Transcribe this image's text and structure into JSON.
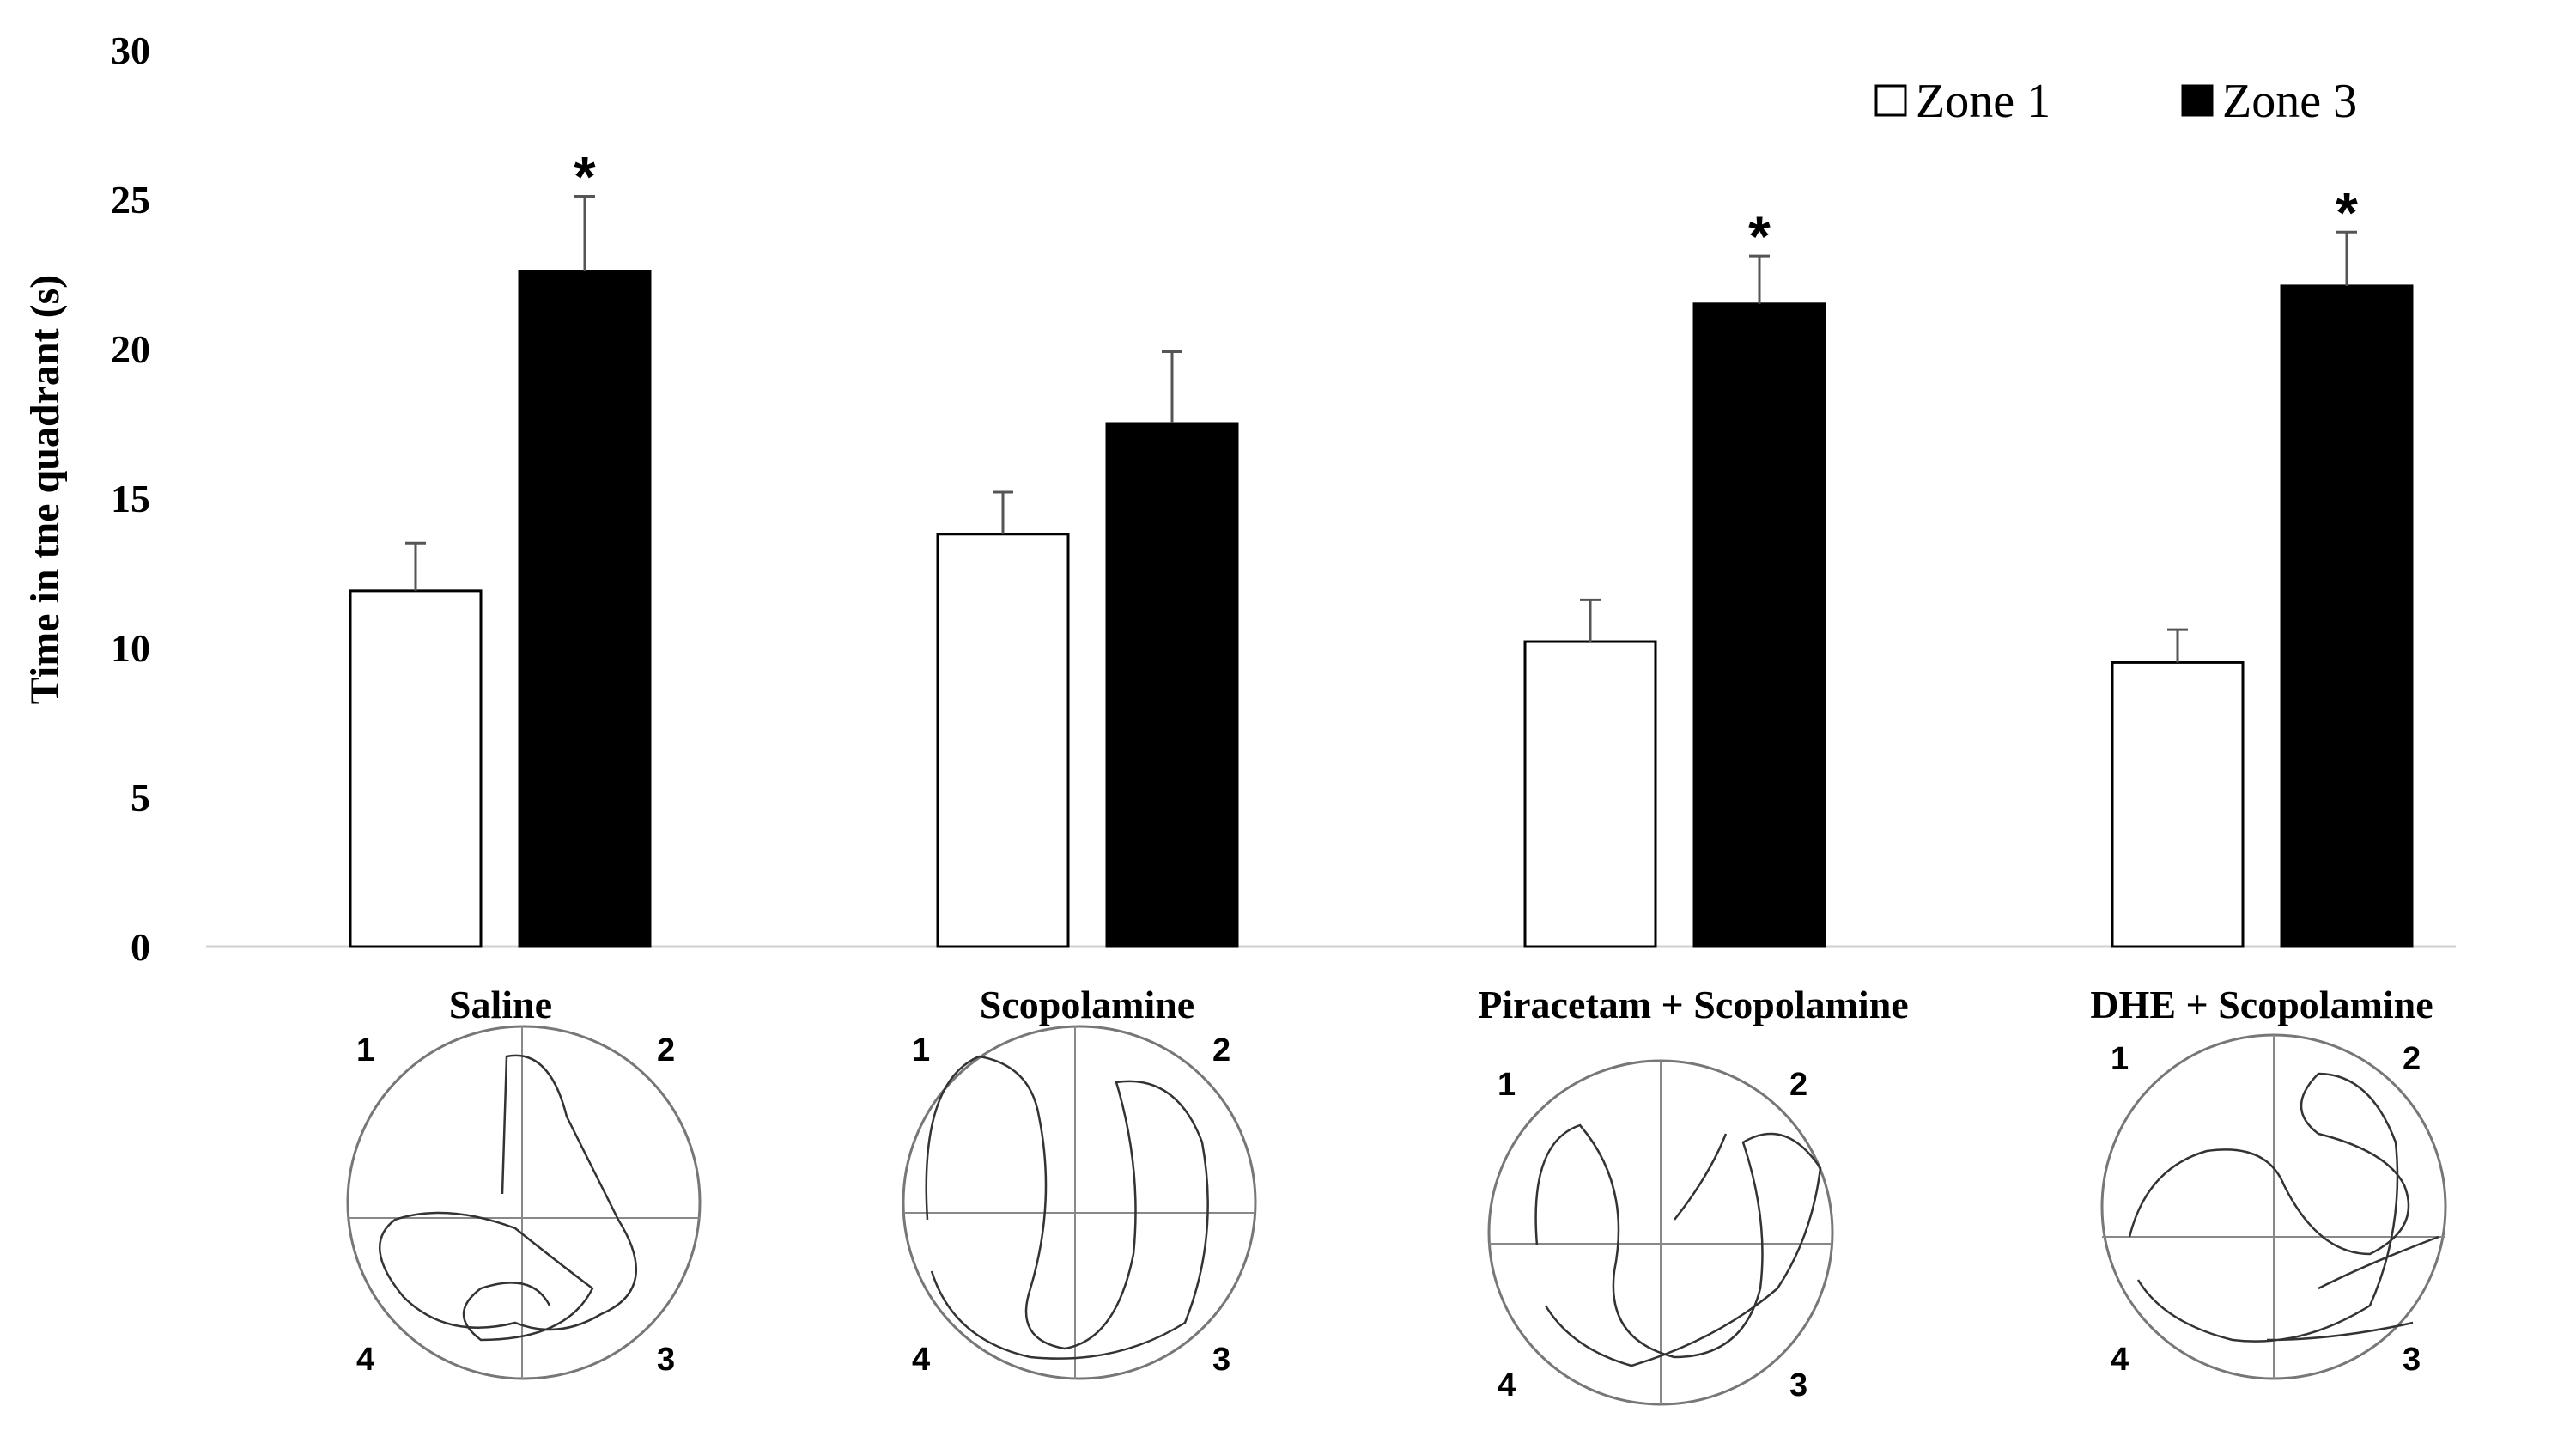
{
  "chart_data": {
    "type": "bar",
    "ylabel": "Time in tne quadrant (s)",
    "ylim": [
      0,
      30
    ],
    "yticks": [
      "0",
      "5",
      "10",
      "15",
      "20",
      "25",
      "30"
    ],
    "categories": [
      "Saline",
      "Scopolamine",
      "Piracetam + Scopolamine",
      "DHE + Scopolamine"
    ],
    "series": [
      {
        "name": "Zone 1",
        "fill": "#ffffff",
        "values": [
          11.9,
          13.8,
          10.2,
          9.5
        ],
        "errors": [
          1.6,
          1.4,
          1.4,
          1.1
        ]
      },
      {
        "name": "Zone 3",
        "fill": "#000000",
        "values": [
          22.6,
          17.5,
          21.5,
          22.1
        ],
        "errors": [
          2.5,
          2.4,
          1.6,
          1.8
        ]
      }
    ],
    "significance": [
      {
        "category": 0,
        "series": 1,
        "label": "*"
      },
      {
        "category": 2,
        "series": 1,
        "label": "*"
      },
      {
        "category": 3,
        "series": 1,
        "label": "*"
      }
    ],
    "grid": false,
    "legend_position": "top-right"
  },
  "maze_panels": [
    {
      "quadrants": [
        "1",
        "2",
        "3",
        "4"
      ]
    },
    {
      "quadrants": [
        "1",
        "2",
        "3",
        "4"
      ]
    },
    {
      "quadrants": [
        "1",
        "2",
        "3",
        "4"
      ]
    },
    {
      "quadrants": [
        "1",
        "2",
        "3",
        "4"
      ]
    }
  ]
}
